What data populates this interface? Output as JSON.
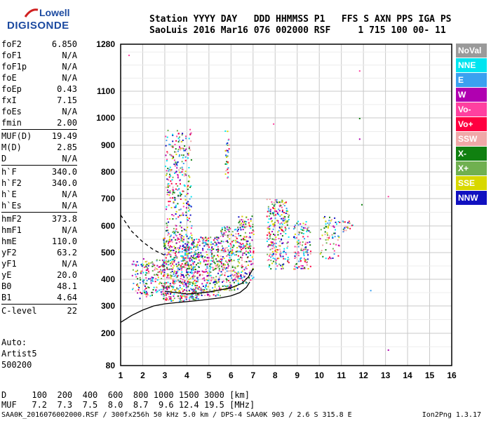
{
  "logo": {
    "line1": "Lowell",
    "line2": "DIGISONDE"
  },
  "header": {
    "line1": "Station YYYY DAY   DDD HHMMSS P1   FFS S AXN PPS IGA PS",
    "line2": "SaoLuis 2016 Mar16 076 002000 RSF     1 715 100 00- 11"
  },
  "params": [
    {
      "name": "foF2",
      "value": "6.850"
    },
    {
      "name": "foF1",
      "value": "N/A"
    },
    {
      "name": "foF1p",
      "value": "N/A"
    },
    {
      "name": "foE",
      "value": "N/A"
    },
    {
      "name": "foEp",
      "value": "0.43"
    },
    {
      "name": "fxI",
      "value": "7.15"
    },
    {
      "name": "foEs",
      "value": "N/A"
    },
    {
      "name": "fmin",
      "value": "2.00"
    },
    {
      "sep": true
    },
    {
      "name": "MUF(D)",
      "value": "19.49"
    },
    {
      "name": "M(D)",
      "value": "2.85"
    },
    {
      "name": "D",
      "value": "N/A"
    },
    {
      "sep": true
    },
    {
      "name": "h`F",
      "value": "340.0"
    },
    {
      "name": "h`F2",
      "value": "340.0"
    },
    {
      "name": "h`E",
      "value": "N/A"
    },
    {
      "name": "h`Es",
      "value": "N/A"
    },
    {
      "sep": true
    },
    {
      "name": "hmF2",
      "value": "373.8"
    },
    {
      "name": "hmF1",
      "value": "N/A"
    },
    {
      "name": "hmE",
      "value": "110.0"
    },
    {
      "name": "yF2",
      "value": "63.2"
    },
    {
      "name": "yF1",
      "value": "N/A"
    },
    {
      "name": "yE",
      "value": "20.0"
    },
    {
      "name": "B0",
      "value": "48.1"
    },
    {
      "name": "B1",
      "value": "4.64"
    },
    {
      "sep": true
    },
    {
      "name": "C-level",
      "value": "22"
    }
  ],
  "auto": {
    "line1": "Auto:",
    "line2": "Artist5",
    "line3": "500200"
  },
  "footer": {
    "dline": "D     100  200  400  600  800 1000 1500 3000 [km]",
    "mufline": "MUF   7.2  7.3  7.5  8.0  8.7  9.6 12.4 19.5 [MHz]",
    "bottom": "SAA0K_2016076002000.RSF / 300fx256h 50 kHz 5.0 km / DPS-4 SAA0K 903 / 2.6 S 315.8 E",
    "version": "Ion2Png 1.3.17"
  },
  "legend": [
    {
      "label": "NoVal",
      "color": "#9a9a9a"
    },
    {
      "label": "NNE",
      "color": "#00e5f0"
    },
    {
      "label": "E",
      "color": "#3aa0f0"
    },
    {
      "label": "W",
      "color": "#b000b0"
    },
    {
      "label": "Vo-",
      "color": "#ff40a0"
    },
    {
      "label": "Vo+",
      "color": "#ff0040"
    },
    {
      "label": "SSW",
      "color": "#f0a8a8"
    },
    {
      "label": "X-",
      "color": "#108010"
    },
    {
      "label": "X+",
      "color": "#70b050"
    },
    {
      "label": "SSE",
      "color": "#d8d800"
    },
    {
      "label": "NNW",
      "color": "#1010c0"
    }
  ],
  "chart_data": {
    "type": "scatter",
    "x_ticks": [
      1,
      2,
      3,
      4,
      5,
      6,
      7,
      8,
      9,
      10,
      11,
      12,
      13,
      14,
      15,
      16
    ],
    "y_ticks": [
      80,
      200,
      300,
      400,
      500,
      600,
      700,
      800,
      900,
      1000,
      1100,
      1280
    ],
    "xlim": [
      1,
      16
    ],
    "ylim": [
      80,
      1280
    ],
    "grid": true,
    "clusters": [
      {
        "fmin": 1.5,
        "fmax": 2.2,
        "hmin": 330,
        "hmax": 470,
        "n": 60
      },
      {
        "fmin": 2.0,
        "fmax": 3.0,
        "hmin": 340,
        "hmax": 480,
        "n": 120
      },
      {
        "fmin": 2.9,
        "fmax": 4.5,
        "hmin": 320,
        "hmax": 560,
        "n": 600
      },
      {
        "fmin": 3.0,
        "fmax": 4.2,
        "hmin": 560,
        "hmax": 960,
        "n": 300
      },
      {
        "fmin": 4.5,
        "fmax": 5.5,
        "hmin": 340,
        "hmax": 560,
        "n": 250
      },
      {
        "fmin": 5.5,
        "fmax": 6.3,
        "hmin": 360,
        "hmax": 600,
        "n": 220
      },
      {
        "fmin": 5.7,
        "fmax": 5.9,
        "hmin": 780,
        "hmax": 960,
        "n": 30
      },
      {
        "fmin": 6.3,
        "fmax": 7.0,
        "hmin": 380,
        "hmax": 640,
        "n": 180
      },
      {
        "fmin": 7.6,
        "fmax": 8.6,
        "hmin": 440,
        "hmax": 700,
        "n": 250
      },
      {
        "fmin": 8.8,
        "fmax": 9.6,
        "hmin": 440,
        "hmax": 620,
        "n": 120
      },
      {
        "fmin": 10.0,
        "fmax": 10.9,
        "hmin": 480,
        "hmax": 640,
        "n": 70
      },
      {
        "fmin": 11.0,
        "fmax": 11.5,
        "hmin": 580,
        "hmax": 620,
        "n": 20
      }
    ],
    "isolated_points": [
      {
        "f": 1.35,
        "h": 1240
      },
      {
        "f": 11.8,
        "h": 1180
      },
      {
        "f": 11.8,
        "h": 1000
      },
      {
        "f": 11.8,
        "h": 925
      },
      {
        "f": 12.3,
        "h": 360
      },
      {
        "f": 13.1,
        "h": 710
      },
      {
        "f": 13.1,
        "h": 140
      },
      {
        "f": 11.9,
        "h": 680
      },
      {
        "f": 7.9,
        "h": 980
      }
    ],
    "curves": [
      {
        "name": "profile",
        "points": [
          [
            1,
            240
          ],
          [
            1.5,
            265
          ],
          [
            2,
            285
          ],
          [
            2.5,
            300
          ],
          [
            3,
            308
          ],
          [
            3.5,
            312
          ],
          [
            4,
            316
          ],
          [
            4.5,
            320
          ],
          [
            5,
            325
          ],
          [
            5.5,
            330
          ],
          [
            6,
            338
          ],
          [
            6.4,
            350
          ],
          [
            6.7,
            370
          ],
          [
            6.85,
            390
          ]
        ]
      },
      {
        "name": "trace",
        "points": [
          [
            3,
            355
          ],
          [
            3.5,
            350
          ],
          [
            4,
            345
          ],
          [
            4.5,
            348
          ],
          [
            5,
            352
          ],
          [
            5.5,
            360
          ],
          [
            6,
            368
          ],
          [
            6.5,
            385
          ],
          [
            6.8,
            410
          ],
          [
            7,
            440
          ]
        ]
      },
      {
        "name": "topside",
        "dashed": true,
        "points": [
          [
            1,
            640
          ],
          [
            1.5,
            580
          ],
          [
            2,
            540
          ],
          [
            2.5,
            510
          ],
          [
            3,
            490
          ]
        ]
      }
    ]
  }
}
